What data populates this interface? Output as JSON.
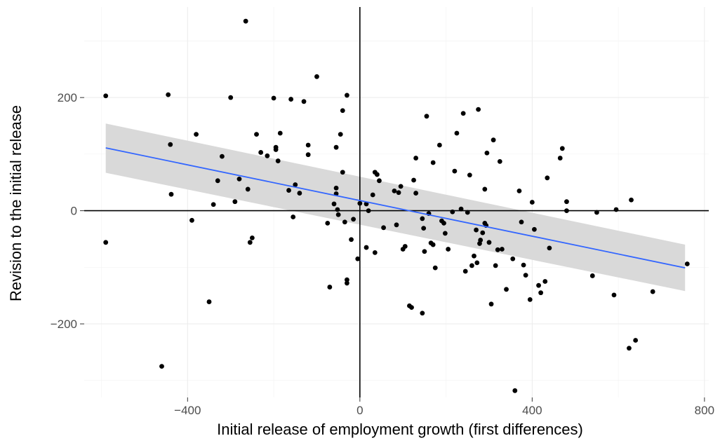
{
  "chart_data": {
    "type": "scatter",
    "title": "",
    "xlabel": "Initial release of employment growth (first differences)",
    "ylabel": "Revision to the initial release",
    "xlim": [
      -640,
      810
    ],
    "ylim": [
      -330,
      360
    ],
    "x_ticks": [
      -400,
      0,
      400,
      800
    ],
    "x_tick_labels": [
      "−400",
      "0",
      "400",
      "800"
    ],
    "y_ticks": [
      -200,
      0,
      200
    ],
    "y_tick_labels": [
      "−200",
      "0",
      "200"
    ],
    "grid": true,
    "reference_lines": {
      "x": 0,
      "y": 0
    },
    "point_color": "#000000",
    "fit_line_color": "#3366ff",
    "ribbon_color": "#d9d9d9",
    "fit": {
      "type": "linear",
      "x": [
        -590,
        755
      ],
      "y": [
        111,
        -101
      ],
      "band_lower": [
        67,
        -142
      ],
      "band_upper": [
        154,
        -60
      ]
    },
    "points": [
      [
        -590,
        203
      ],
      [
        -590,
        -56
      ],
      [
        -445,
        205
      ],
      [
        -440,
        117
      ],
      [
        -438,
        29
      ],
      [
        -460,
        -275
      ],
      [
        -380,
        135
      ],
      [
        -390,
        -17
      ],
      [
        -350,
        -161
      ],
      [
        -340,
        11
      ],
      [
        -330,
        53
      ],
      [
        -320,
        96
      ],
      [
        -300,
        200
      ],
      [
        -290,
        16
      ],
      [
        -280,
        56
      ],
      [
        -265,
        335
      ],
      [
        -260,
        38
      ],
      [
        -255,
        -56
      ],
      [
        -250,
        -48
      ],
      [
        -240,
        135
      ],
      [
        -230,
        103
      ],
      [
        -215,
        97
      ],
      [
        -200,
        199
      ],
      [
        -195,
        112
      ],
      [
        -195,
        108
      ],
      [
        -190,
        88
      ],
      [
        -185,
        137
      ],
      [
        -165,
        36
      ],
      [
        -160,
        197
      ],
      [
        -155,
        -11
      ],
      [
        -150,
        46
      ],
      [
        -140,
        31
      ],
      [
        -130,
        193
      ],
      [
        -120,
        116
      ],
      [
        -120,
        99
      ],
      [
        -100,
        237
      ],
      [
        -75,
        -22
      ],
      [
        -70,
        -135
      ],
      [
        -60,
        12
      ],
      [
        -55,
        112
      ],
      [
        -55,
        40
      ],
      [
        -55,
        30
      ],
      [
        -52,
        2
      ],
      [
        -50,
        -7
      ],
      [
        -45,
        135
      ],
      [
        -40,
        177
      ],
      [
        -40,
        68
      ],
      [
        -35,
        -20
      ],
      [
        -30,
        204
      ],
      [
        -30,
        -122
      ],
      [
        -30,
        -128
      ],
      [
        -20,
        -51
      ],
      [
        -15,
        -15
      ],
      [
        -5,
        -85
      ],
      [
        0,
        13
      ],
      [
        15,
        12
      ],
      [
        15,
        -65
      ],
      [
        20,
        0
      ],
      [
        30,
        28
      ],
      [
        35,
        -74
      ],
      [
        35,
        68
      ],
      [
        40,
        64
      ],
      [
        45,
        53
      ],
      [
        55,
        -30
      ],
      [
        80,
        35
      ],
      [
        85,
        -25
      ],
      [
        90,
        32
      ],
      [
        95,
        43
      ],
      [
        100,
        -68
      ],
      [
        105,
        -63
      ],
      [
        115,
        -168
      ],
      [
        120,
        -171
      ],
      [
        125,
        54
      ],
      [
        130,
        93
      ],
      [
        130,
        31
      ],
      [
        145,
        -181
      ],
      [
        145,
        -14
      ],
      [
        148,
        -31
      ],
      [
        150,
        -72
      ],
      [
        155,
        167
      ],
      [
        160,
        -5
      ],
      [
        165,
        -57
      ],
      [
        170,
        -60
      ],
      [
        170,
        85
      ],
      [
        175,
        -101
      ],
      [
        185,
        116
      ],
      [
        190,
        -18
      ],
      [
        195,
        -22
      ],
      [
        198,
        -40
      ],
      [
        205,
        -68
      ],
      [
        215,
        -2
      ],
      [
        220,
        70
      ],
      [
        225,
        137
      ],
      [
        235,
        3
      ],
      [
        240,
        172
      ],
      [
        245,
        -107
      ],
      [
        250,
        -3
      ],
      [
        255,
        63
      ],
      [
        260,
        -97
      ],
      [
        265,
        -80
      ],
      [
        270,
        -34
      ],
      [
        272,
        -92
      ],
      [
        275,
        179
      ],
      [
        278,
        -58
      ],
      [
        280,
        -52
      ],
      [
        285,
        -39
      ],
      [
        290,
        -22
      ],
      [
        290,
        38
      ],
      [
        293,
        -26
      ],
      [
        295,
        102
      ],
      [
        300,
        -56
      ],
      [
        305,
        -165
      ],
      [
        310,
        125
      ],
      [
        315,
        -97
      ],
      [
        320,
        -69
      ],
      [
        325,
        87
      ],
      [
        330,
        -68
      ],
      [
        340,
        -139
      ],
      [
        355,
        -85
      ],
      [
        360,
        -318
      ],
      [
        370,
        35
      ],
      [
        375,
        -20
      ],
      [
        380,
        -96
      ],
      [
        385,
        -114
      ],
      [
        395,
        -157
      ],
      [
        400,
        15
      ],
      [
        405,
        -33
      ],
      [
        415,
        -132
      ],
      [
        420,
        -145
      ],
      [
        430,
        -125
      ],
      [
        435,
        58
      ],
      [
        440,
        -66
      ],
      [
        465,
        93
      ],
      [
        470,
        110
      ],
      [
        480,
        16
      ],
      [
        480,
        0
      ],
      [
        540,
        -115
      ],
      [
        550,
        -3
      ],
      [
        590,
        -149
      ],
      [
        595,
        2
      ],
      [
        625,
        -243
      ],
      [
        630,
        19
      ],
      [
        640,
        -229
      ],
      [
        680,
        -143
      ],
      [
        760,
        -94
      ]
    ]
  }
}
